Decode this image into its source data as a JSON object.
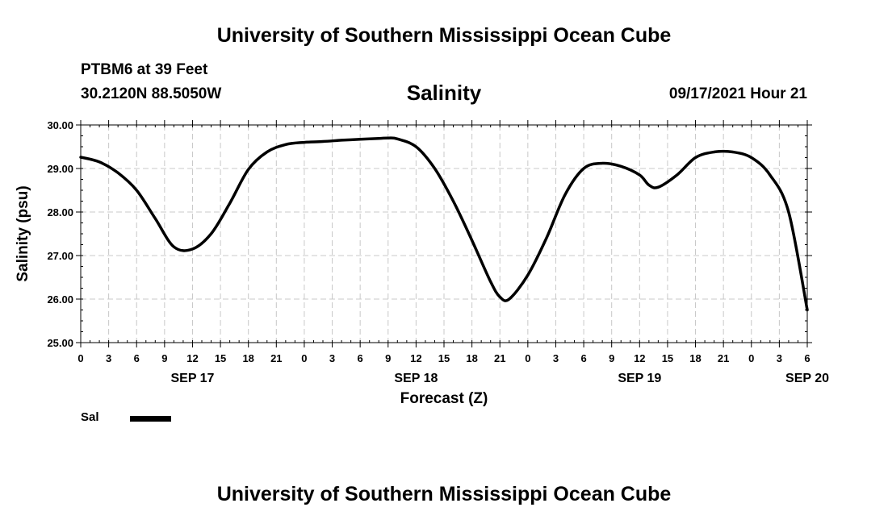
{
  "header": {
    "title": "University of Southern Mississippi Ocean Cube",
    "station": "PTBM6 at 39 Feet",
    "coordinates": "30.2120N  88.5050W",
    "datetime": "09/17/2021 Hour 21"
  },
  "footer": {
    "title": "University of Southern Mississippi Ocean Cube"
  },
  "chart_data": {
    "type": "line",
    "title": "Salinity",
    "xlabel": "Forecast (Z)",
    "ylabel": "Salinity (psu)",
    "ylim": [
      25.0,
      30.0
    ],
    "xlim_hours": [
      0,
      78
    ],
    "grid": true,
    "line_color": "#000000",
    "y_ticks": [
      "25.00",
      "26.00",
      "27.00",
      "28.00",
      "29.00",
      "30.00"
    ],
    "x_tick_labels": [
      "0",
      "3",
      "6",
      "9",
      "12",
      "15",
      "18",
      "21",
      "0",
      "3",
      "6",
      "9",
      "12",
      "15",
      "18",
      "21",
      "0",
      "3",
      "6",
      "9",
      "12",
      "15",
      "18",
      "21",
      "0",
      "3",
      "6"
    ],
    "date_labels": [
      {
        "label": "SEP 17",
        "hour": 12
      },
      {
        "label": "SEP 18",
        "hour": 36
      },
      {
        "label": "SEP 19",
        "hour": 60
      },
      {
        "label": "SEP 20",
        "hour": 78
      }
    ],
    "series": [
      {
        "name": "Sal",
        "x": [
          0,
          2,
          4,
          6,
          8,
          10,
          12,
          14,
          16,
          18,
          20,
          22,
          24,
          26,
          28,
          30,
          32,
          33,
          34,
          36,
          38,
          40,
          42,
          44,
          45,
          46,
          48,
          50,
          52,
          54,
          56,
          58,
          60,
          61,
          62,
          64,
          66,
          68,
          70,
          72,
          74,
          76,
          78
        ],
        "y": [
          29.26,
          29.15,
          28.9,
          28.5,
          27.85,
          27.2,
          27.15,
          27.5,
          28.2,
          28.98,
          29.38,
          29.55,
          29.6,
          29.62,
          29.65,
          29.67,
          29.69,
          29.7,
          29.68,
          29.5,
          29.0,
          28.25,
          27.35,
          26.4,
          26.05,
          26.0,
          26.55,
          27.4,
          28.4,
          29.0,
          29.12,
          29.05,
          28.85,
          28.62,
          28.57,
          28.85,
          29.25,
          29.38,
          29.38,
          29.25,
          28.85,
          28.0,
          25.75
        ]
      }
    ]
  }
}
